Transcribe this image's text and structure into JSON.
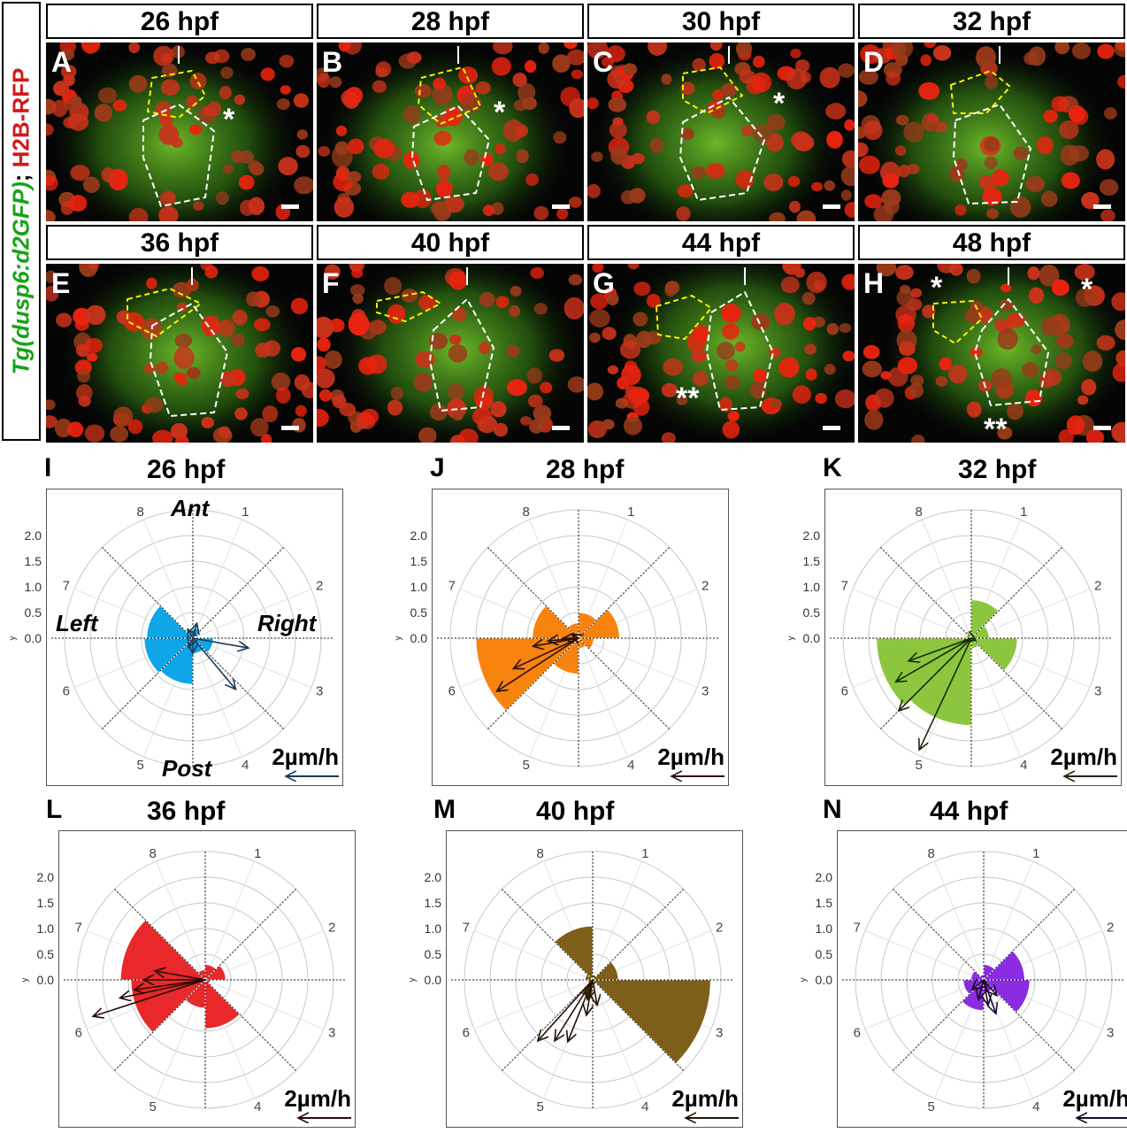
{
  "vertical_label": {
    "part1": "Tg(dusp6:d2GFP)",
    "part2": "; ",
    "part3": "H2B-RFP"
  },
  "micrographs": [
    {
      "letter": "A",
      "time": "26 hpf",
      "stars": [
        "*"
      ]
    },
    {
      "letter": "B",
      "time": "28 hpf",
      "stars": [
        "*"
      ]
    },
    {
      "letter": "C",
      "time": "30 hpf",
      "stars": [
        "*"
      ]
    },
    {
      "letter": "D",
      "time": "32 hpf",
      "stars": []
    },
    {
      "letter": "E",
      "time": "36 hpf",
      "stars": []
    },
    {
      "letter": "F",
      "time": "40 hpf",
      "stars": []
    },
    {
      "letter": "G",
      "time": "44 hpf",
      "stars": [
        "**"
      ]
    },
    {
      "letter": "H",
      "time": "48 hpf",
      "stars": [
        "*",
        "*",
        "**"
      ]
    }
  ],
  "polar_common": {
    "y_axis_name": "y",
    "y_ticks": [
      "0.0",
      "0.5",
      "1.0",
      "1.5",
      "2.0"
    ],
    "sector_labels": [
      "1",
      "2",
      "3",
      "4",
      "5",
      "6",
      "7",
      "8"
    ],
    "scale_label": "2µm/h",
    "direction_labels": {
      "ant": "Ant",
      "post": "Post",
      "left": "Left",
      "right": "Right"
    }
  },
  "chart_data": [
    {
      "type": "polar-rose",
      "panel": "I",
      "title": "26 hpf",
      "color": "#0ea5e9",
      "arrow_color": "#1a3a5a",
      "rlim": [
        0,
        2.5
      ],
      "rose": [
        0.2,
        0.0,
        0.4,
        0.3,
        0.9,
        0.95,
        0.9,
        0.15
      ],
      "arrows": [
        [
          100,
          1.1
        ],
        [
          140,
          1.3
        ],
        [
          180,
          0.3
        ],
        [
          205,
          0.2
        ],
        [
          15,
          0.3
        ],
        [
          330,
          0.2
        ]
      ]
    },
    {
      "type": "polar-rose",
      "panel": "J",
      "title": "28 hpf",
      "color": "#f7830e",
      "arrow_color": "#2a1010",
      "rlim": [
        0,
        2.5
      ],
      "rose": [
        0.5,
        0.8,
        0.3,
        0.2,
        0.7,
        2.0,
        0.9,
        0.3
      ],
      "arrows": [
        [
          237,
          1.9
        ],
        [
          245,
          1.4
        ],
        [
          260,
          0.9
        ],
        [
          265,
          0.6
        ],
        [
          270,
          0.3
        ],
        [
          300,
          0.15
        ]
      ]
    },
    {
      "type": "polar-rose",
      "panel": "K",
      "title": "32 hpf",
      "color": "#8cc63f",
      "arrow_color": "#1a2a0a",
      "rlim": [
        0,
        2.5
      ],
      "rose": [
        0.75,
        0.35,
        0.9,
        0.2,
        1.7,
        1.85,
        0.1,
        0.15
      ],
      "arrows": [
        [
          225,
          2.0
        ],
        [
          240,
          1.7
        ],
        [
          250,
          1.3
        ],
        [
          205,
          2.4
        ],
        [
          120,
          0.1
        ]
      ]
    },
    {
      "type": "polar-rose",
      "panel": "L",
      "title": "36 hpf",
      "color": "#e8282b",
      "arrow_color": "#2a0a0a",
      "rlim": [
        0,
        2.5
      ],
      "rose": [
        0.3,
        0.4,
        0.1,
        0.95,
        0.55,
        1.45,
        1.65,
        0.2
      ],
      "arrows": [
        [
          252,
          2.3
        ],
        [
          258,
          1.7
        ],
        [
          262,
          1.4
        ],
        [
          270,
          1.2
        ],
        [
          280,
          1.0
        ]
      ]
    },
    {
      "type": "polar-rose",
      "panel": "M",
      "title": "40 hpf",
      "color": "#7d5f1a",
      "arrow_color": "#221505",
      "rlim": [
        0,
        2.5
      ],
      "rose": [
        0.1,
        0.5,
        2.3,
        0.1,
        0.35,
        0.1,
        0.15,
        1.05
      ],
      "arrows": [
        [
          222,
          1.6
        ],
        [
          212,
          1.4
        ],
        [
          202,
          1.3
        ],
        [
          190,
          0.7
        ],
        [
          195,
          0.4
        ],
        [
          170,
          0.5
        ]
      ]
    },
    {
      "type": "polar-rose",
      "panel": "N",
      "title": "44 hpf",
      "color": "#8b2be2",
      "arrow_color": "#1a0a2a",
      "rlim": [
        0,
        2.5
      ],
      "rose": [
        0.3,
        0.8,
        0.9,
        0.25,
        0.6,
        0.4,
        0.25,
        0.1
      ],
      "arrows": [
        [
          160,
          0.7
        ],
        [
          170,
          0.5
        ],
        [
          195,
          0.4
        ],
        [
          230,
          0.3
        ],
        [
          140,
          0.4
        ]
      ]
    }
  ]
}
